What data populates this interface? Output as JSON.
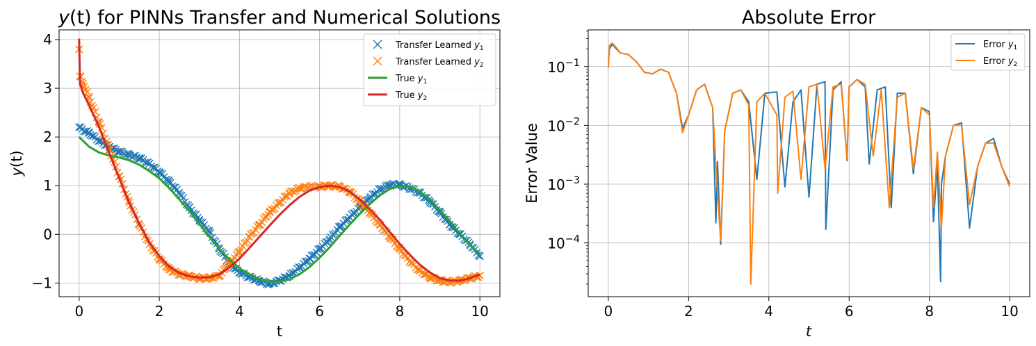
{
  "chart_data": [
    {
      "type": "line",
      "title_parts": [
        "y",
        "(t) for PINNs Transfer and Numerical Solutions"
      ],
      "xlabel": "t",
      "ylabel_parts": [
        "y",
        "(t)"
      ],
      "xlim": [
        -0.5,
        10.5
      ],
      "ylim": [
        -1.28,
        4.2
      ],
      "xticks": [
        0,
        2,
        4,
        6,
        8,
        10
      ],
      "xtick_labels": [
        "0",
        "2",
        "4",
        "6",
        "8",
        "10"
      ],
      "yticks": [
        -1,
        0,
        1,
        2,
        3,
        4
      ],
      "ytick_labels": [
        "−1",
        "0",
        "1",
        "2",
        "3",
        "4"
      ],
      "grid": true,
      "legend_position": "top-right",
      "legend": [
        {
          "prefix": "Transfer Learned ",
          "var": "y",
          "sub": "1",
          "marker": "x",
          "color": "#1f77b4"
        },
        {
          "prefix": "Transfer Learned ",
          "var": "y",
          "sub": "2",
          "marker": "x",
          "color": "#ff7f0e"
        },
        {
          "prefix": "True ",
          "var": "y",
          "sub": "1",
          "marker": "line",
          "color": "#2ca02c"
        },
        {
          "prefix": "True ",
          "var": "y",
          "sub": "2",
          "marker": "line",
          "color": "#d62728"
        }
      ],
      "series": [
        {
          "name": "Transfer Learned y1",
          "style": "markers",
          "marker": "x",
          "color": "#1f77b4",
          "x": [
            0,
            0.25,
            0.5,
            0.75,
            1,
            1.25,
            1.5,
            1.75,
            2,
            2.25,
            2.5,
            2.75,
            3,
            3.25,
            3.5,
            3.75,
            4,
            4.25,
            4.5,
            4.75,
            5,
            5.25,
            5.5,
            5.75,
            6,
            6.25,
            6.5,
            6.75,
            7,
            7.25,
            7.5,
            7.75,
            8,
            8.25,
            8.5,
            8.75,
            9,
            9.25,
            9.5,
            9.75,
            10
          ],
          "y": [
            2.2,
            2.08,
            1.92,
            1.8,
            1.7,
            1.63,
            1.57,
            1.45,
            1.28,
            1.08,
            0.85,
            0.55,
            0.3,
            0.05,
            -0.3,
            -0.6,
            -0.78,
            -0.88,
            -0.96,
            -1.02,
            -0.95,
            -0.85,
            -0.68,
            -0.5,
            -0.3,
            -0.1,
            0.15,
            0.35,
            0.55,
            0.75,
            0.92,
            1.02,
            1.02,
            0.95,
            0.85,
            0.68,
            0.45,
            0.2,
            0,
            -0.2,
            -0.45
          ]
        },
        {
          "name": "Transfer Learned y2",
          "style": "markers",
          "marker": "x",
          "color": "#ff7f0e",
          "x": [
            0,
            0.02,
            0.1,
            0.25,
            0.5,
            0.75,
            1,
            1.25,
            1.5,
            1.75,
            2,
            2.25,
            2.5,
            2.75,
            3,
            3.25,
            3.5,
            3.75,
            4,
            4.25,
            4.5,
            4.75,
            5,
            5.25,
            5.5,
            5.75,
            6,
            6.25,
            6.5,
            6.75,
            7,
            7.25,
            7.5,
            7.75,
            8,
            8.25,
            8.5,
            8.75,
            9,
            9.25,
            9.5,
            9.75,
            10
          ],
          "y": [
            3.8,
            3.25,
            3.1,
            2.8,
            2.3,
            1.75,
            1.2,
            0.65,
            0.2,
            -0.2,
            -0.5,
            -0.72,
            -0.82,
            -0.86,
            -0.9,
            -0.9,
            -0.85,
            -0.6,
            -0.35,
            -0.05,
            0.2,
            0.45,
            0.65,
            0.85,
            0.95,
            0.98,
            0.98,
            1.0,
            0.98,
            0.88,
            0.68,
            0.45,
            0.2,
            -0.05,
            -0.3,
            -0.55,
            -0.75,
            -0.88,
            -0.95,
            -0.98,
            -0.95,
            -0.9,
            -0.85
          ]
        },
        {
          "name": "True y1",
          "style": "line",
          "color": "#2ca02c",
          "x": [
            0,
            0.25,
            0.5,
            0.75,
            1,
            1.25,
            1.5,
            1.75,
            2,
            2.25,
            2.5,
            2.75,
            3,
            3.25,
            3.5,
            3.75,
            4,
            4.25,
            4.5,
            4.75,
            5,
            5.25,
            5.5,
            5.75,
            6,
            6.25,
            6.5,
            6.75,
            7,
            7.25,
            7.5,
            7.75,
            8,
            8.25,
            8.5,
            8.75,
            9,
            9.25,
            9.5,
            9.75,
            10
          ],
          "y": [
            2,
            1.8,
            1.68,
            1.62,
            1.58,
            1.52,
            1.43,
            1.3,
            1.15,
            0.95,
            0.72,
            0.48,
            0.22,
            -0.05,
            -0.3,
            -0.52,
            -0.7,
            -0.82,
            -0.92,
            -0.97,
            -0.97,
            -0.92,
            -0.82,
            -0.67,
            -0.48,
            -0.27,
            -0.03,
            0.2,
            0.42,
            0.62,
            0.8,
            0.93,
            0.99,
            0.97,
            0.88,
            0.72,
            0.5,
            0.27,
            0.02,
            -0.22,
            -0.4
          ]
        },
        {
          "name": "True y2",
          "style": "line",
          "color": "#d62728",
          "x": [
            0,
            0.02,
            0.1,
            0.25,
            0.5,
            0.75,
            1,
            1.25,
            1.5,
            1.75,
            2,
            2.25,
            2.5,
            2.75,
            3,
            3.25,
            3.5,
            3.75,
            4,
            4.25,
            4.5,
            4.75,
            5,
            5.25,
            5.5,
            5.75,
            6,
            6.25,
            6.5,
            6.75,
            7,
            7.25,
            7.5,
            7.75,
            8,
            8.25,
            8.5,
            8.75,
            9,
            9.25,
            9.5,
            9.75,
            10
          ],
          "y": [
            4.02,
            3.1,
            2.9,
            2.65,
            2.2,
            1.68,
            1.15,
            0.65,
            0.22,
            -0.16,
            -0.45,
            -0.66,
            -0.79,
            -0.86,
            -0.89,
            -0.88,
            -0.82,
            -0.68,
            -0.5,
            -0.28,
            -0.05,
            0.18,
            0.4,
            0.6,
            0.77,
            0.9,
            0.97,
            1.0,
            0.97,
            0.88,
            0.72,
            0.52,
            0.3,
            0.05,
            -0.2,
            -0.42,
            -0.62,
            -0.78,
            -0.9,
            -0.95,
            -0.95,
            -0.9,
            -0.82
          ]
        }
      ]
    },
    {
      "type": "line",
      "title": "Absolute Error",
      "xlabel": "t",
      "ylabel": "Error Value",
      "yscale": "log",
      "xlim": [
        -0.5,
        10.5
      ],
      "ylim": [
        1.22e-05,
        0.42
      ],
      "xticks": [
        0,
        2,
        4,
        6,
        8,
        10
      ],
      "xtick_labels": [
        "0",
        "2",
        "4",
        "6",
        "8",
        "10"
      ],
      "yticks": [
        0.0001,
        0.001,
        0.01,
        0.1
      ],
      "ytick_exponents": [
        "−4",
        "−3",
        "−2",
        "−1"
      ],
      "ytick_base": "10",
      "grid": true,
      "legend_position": "top-right",
      "legend": [
        {
          "prefix": "Error ",
          "var": "y",
          "sub": "1",
          "color": "#1f77b4"
        },
        {
          "prefix": "Error ",
          "var": "y",
          "sub": "2",
          "color": "#ff7f0e"
        }
      ],
      "series": [
        {
          "name": "Error y1",
          "color": "#1f77b4",
          "x": [
            0,
            0.03,
            0.1,
            0.2,
            0.3,
            0.5,
            0.7,
            0.9,
            1.1,
            1.3,
            1.5,
            1.7,
            1.85,
            2.0,
            2.2,
            2.4,
            2.6,
            2.68,
            2.72,
            2.8,
            2.9,
            3.1,
            3.3,
            3.5,
            3.7,
            3.9,
            4.2,
            4.4,
            4.6,
            4.8,
            5.0,
            5.2,
            5.4,
            5.42,
            5.6,
            5.8,
            5.95,
            6.0,
            6.2,
            6.4,
            6.5,
            6.7,
            6.9,
            7.05,
            7.2,
            7.4,
            7.6,
            7.8,
            8.0,
            8.1,
            8.2,
            8.28,
            8.3,
            8.4,
            8.6,
            8.8,
            9.0,
            9.2,
            9.4,
            9.6,
            9.8,
            10
          ],
          "y": [
            0.12,
            0.2,
            0.24,
            0.2,
            0.17,
            0.16,
            0.12,
            0.08,
            0.075,
            0.09,
            0.08,
            0.035,
            0.009,
            0.015,
            0.04,
            0.05,
            0.02,
            0.00022,
            0.0024,
            9.5e-05,
            0.008,
            0.035,
            0.04,
            0.025,
            0.0012,
            0.035,
            0.037,
            0.0009,
            0.025,
            0.04,
            0.0006,
            0.05,
            0.055,
            0.00017,
            0.04,
            0.055,
            0.0025,
            0.045,
            0.06,
            0.045,
            0.0022,
            0.04,
            0.045,
            0.0004,
            0.035,
            0.035,
            0.0015,
            0.02,
            0.017,
            0.00023,
            0.0022,
            2.2e-05,
            0.001,
            0.003,
            0.01,
            0.011,
            0.00018,
            0.002,
            0.005,
            0.006,
            0.002,
            0.001
          ]
        },
        {
          "name": "Error y2",
          "color": "#ff7f0e",
          "x": [
            0,
            0.03,
            0.1,
            0.2,
            0.3,
            0.5,
            0.7,
            0.9,
            1.1,
            1.3,
            1.5,
            1.7,
            1.85,
            2.0,
            2.2,
            2.4,
            2.6,
            2.7,
            2.8,
            2.9,
            3.1,
            3.3,
            3.5,
            3.55,
            3.7,
            3.9,
            4.2,
            4.22,
            4.4,
            4.6,
            4.8,
            5.0,
            5.2,
            5.4,
            5.6,
            5.8,
            5.95,
            6.0,
            6.2,
            6.4,
            6.6,
            6.8,
            7.0,
            7.2,
            7.4,
            7.6,
            7.8,
            8.0,
            8.1,
            8.2,
            8.3,
            8.4,
            8.6,
            8.8,
            9.0,
            9.2,
            9.4,
            9.6,
            9.8,
            10
          ],
          "y": [
            0.095,
            0.23,
            0.25,
            0.21,
            0.17,
            0.16,
            0.12,
            0.08,
            0.075,
            0.09,
            0.08,
            0.035,
            0.0075,
            0.015,
            0.04,
            0.05,
            0.02,
            0.0012,
            0.00011,
            0.008,
            0.035,
            0.04,
            0.022,
            2e-05,
            0.025,
            0.035,
            0.015,
            0.0007,
            0.03,
            0.038,
            0.0012,
            0.045,
            0.05,
            0.0018,
            0.045,
            0.05,
            0.0027,
            0.045,
            0.06,
            0.05,
            0.003,
            0.04,
            0.0004,
            0.03,
            0.035,
            0.0018,
            0.02,
            0.015,
            0.0004,
            0.0035,
            0.00018,
            0.003,
            0.01,
            0.01,
            0.00045,
            0.002,
            0.005,
            0.005,
            0.002,
            0.0009
          ]
        }
      ]
    }
  ]
}
